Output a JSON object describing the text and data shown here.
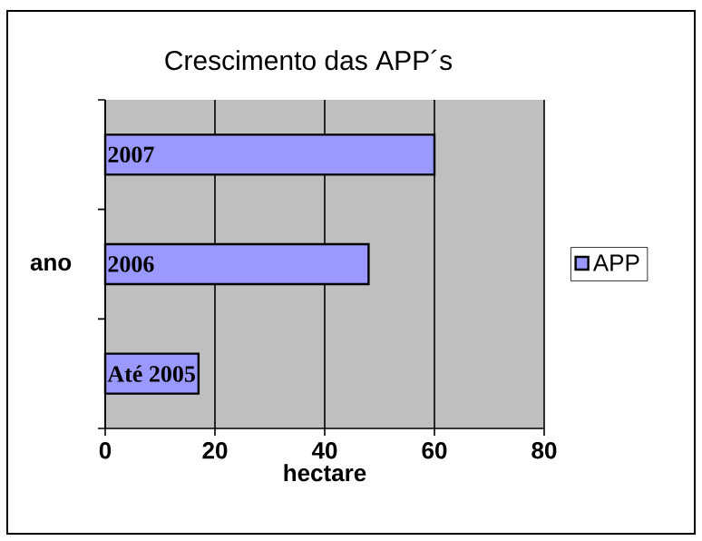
{
  "chart_data": {
    "type": "bar",
    "orientation": "horizontal",
    "title": "Crescimento das APP´s",
    "xlabel": "hectare",
    "ylabel": "ano",
    "categories": [
      "2007",
      "2006",
      "Até 2005"
    ],
    "series": [
      {
        "name": "APP",
        "color": "#9999ff",
        "values": [
          60,
          48,
          17
        ]
      }
    ],
    "xlim": [
      0,
      80
    ],
    "xticks": [
      0,
      20,
      40,
      60,
      80
    ],
    "grid": "x",
    "legend": "right"
  }
}
